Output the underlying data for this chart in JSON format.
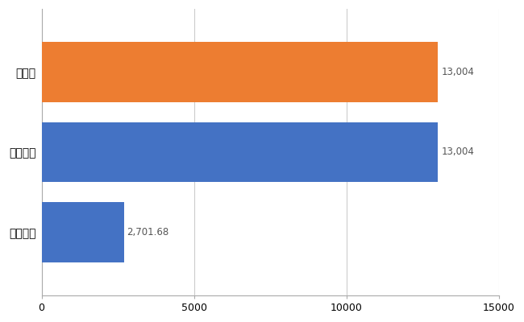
{
  "categories": [
    "全国平均",
    "全国最大",
    "東京都"
  ],
  "values": [
    2701.68,
    13004,
    13004
  ],
  "bar_colors": [
    "#4472c4",
    "#4472c4",
    "#ed7d31"
  ],
  "value_labels": [
    "2,701.68",
    "13,004",
    "13,004"
  ],
  "xlim": [
    0,
    15000
  ],
  "xticks": [
    0,
    5000,
    10000,
    15000
  ],
  "background_color": "#ffffff",
  "grid_color": "#cccccc",
  "label_fontsize": 10,
  "tick_fontsize": 9,
  "annotation_fontsize": 8.5
}
